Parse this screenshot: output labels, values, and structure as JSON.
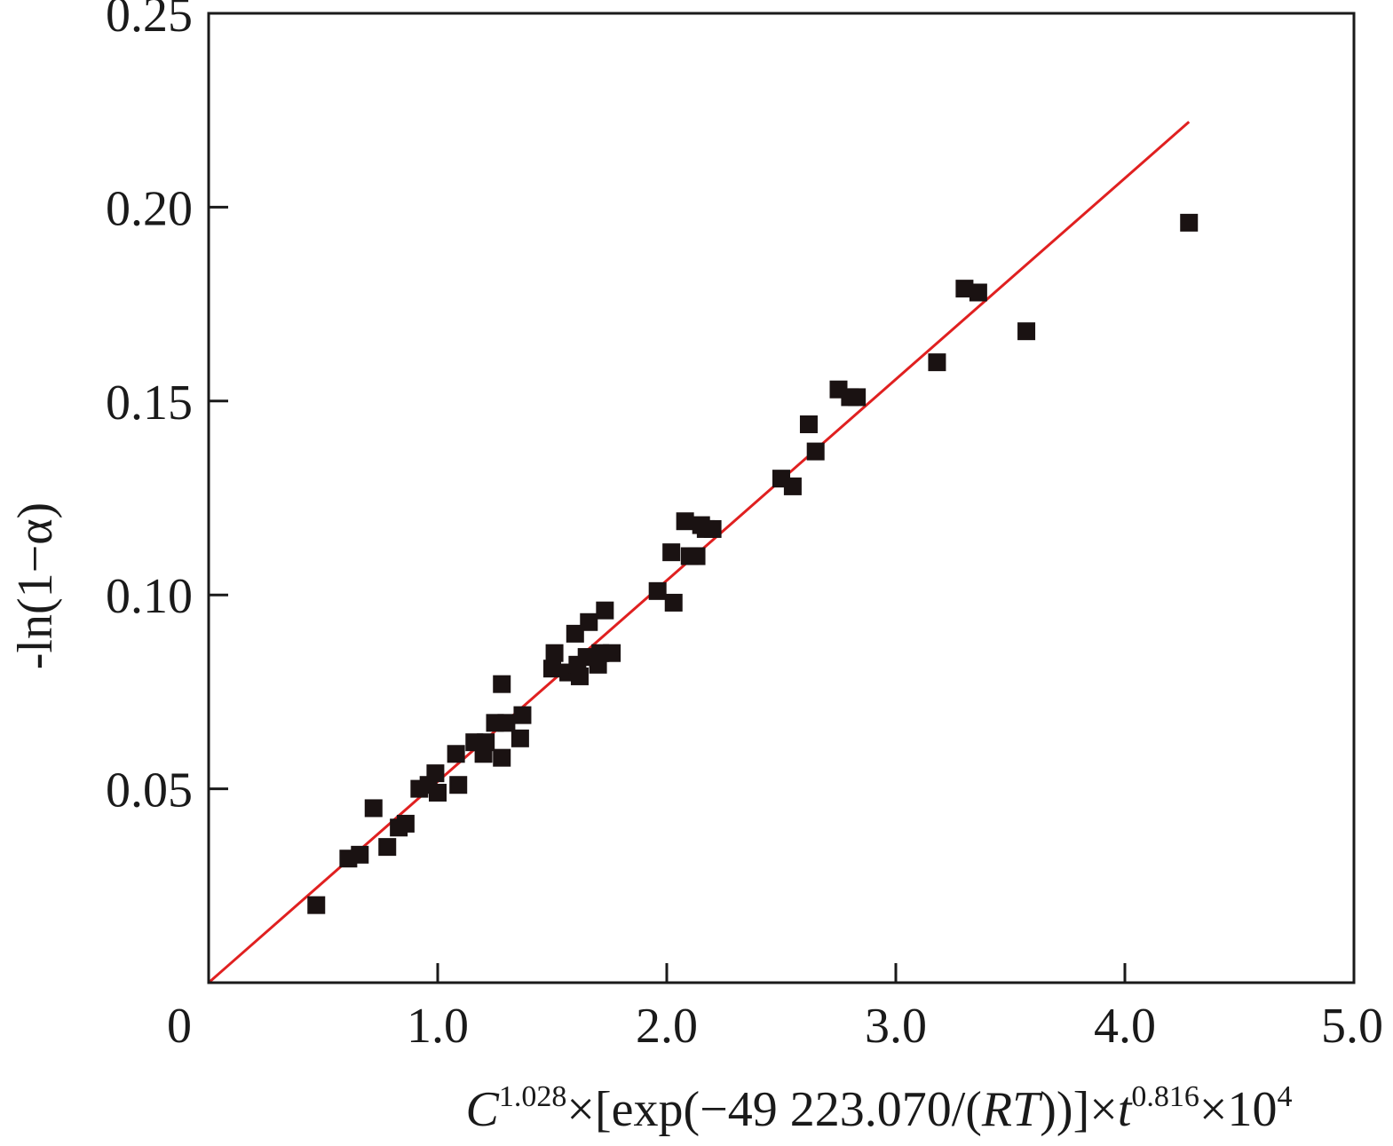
{
  "chart_data": {
    "type": "scatter",
    "title": "",
    "xlabel": {
      "parts": [
        {
          "text": "C",
          "italic": true
        },
        {
          "text": "1.028",
          "sup": true
        },
        {
          "text": "×[exp(−49 223.070/("
        },
        {
          "text": "RT",
          "italic": true
        },
        {
          "text": "))]×"
        },
        {
          "text": "t",
          "italic": true
        },
        {
          "text": "0.816",
          "sup": true
        },
        {
          "text": "×10"
        },
        {
          "text": "4",
          "sup": true
        }
      ]
    },
    "ylabel": "-ln(1−α)",
    "xlim": [
      0,
      5.0
    ],
    "ylim": [
      0,
      0.25
    ],
    "xticks": [
      {
        "value": 0,
        "label": "0"
      },
      {
        "value": 1.0,
        "label": "1.0"
      },
      {
        "value": 2.0,
        "label": "2.0"
      },
      {
        "value": 3.0,
        "label": "3.0"
      },
      {
        "value": 4.0,
        "label": "4.0"
      },
      {
        "value": 5.0,
        "label": "5.0"
      }
    ],
    "yticks": [
      {
        "value": 0.05,
        "label": "0.05"
      },
      {
        "value": 0.1,
        "label": "0.10"
      },
      {
        "value": 0.15,
        "label": "0.15"
      },
      {
        "value": 0.2,
        "label": "0.20"
      },
      {
        "value": 0.25,
        "label": "0.25"
      }
    ],
    "grid": false,
    "series": [
      {
        "marker": "square",
        "color": "#1a1212",
        "points": [
          [
            0.47,
            0.02
          ],
          [
            0.61,
            0.032
          ],
          [
            0.66,
            0.033
          ],
          [
            0.72,
            0.045
          ],
          [
            0.78,
            0.035
          ],
          [
            0.83,
            0.04
          ],
          [
            0.86,
            0.041
          ],
          [
            0.92,
            0.05
          ],
          [
            0.96,
            0.051
          ],
          [
            0.99,
            0.054
          ],
          [
            1.0,
            0.049
          ],
          [
            1.08,
            0.059
          ],
          [
            1.09,
            0.051
          ],
          [
            1.16,
            0.062
          ],
          [
            1.2,
            0.059
          ],
          [
            1.21,
            0.062
          ],
          [
            1.25,
            0.067
          ],
          [
            1.28,
            0.058
          ],
          [
            1.28,
            0.077
          ],
          [
            1.3,
            0.067
          ],
          [
            1.36,
            0.063
          ],
          [
            1.37,
            0.069
          ],
          [
            1.5,
            0.081
          ],
          [
            1.51,
            0.085
          ],
          [
            1.57,
            0.08
          ],
          [
            1.6,
            0.09
          ],
          [
            1.61,
            0.082
          ],
          [
            1.62,
            0.079
          ],
          [
            1.65,
            0.084
          ],
          [
            1.66,
            0.093
          ],
          [
            1.7,
            0.082
          ],
          [
            1.71,
            0.085
          ],
          [
            1.73,
            0.096
          ],
          [
            1.76,
            0.085
          ],
          [
            1.96,
            0.101
          ],
          [
            2.02,
            0.111
          ],
          [
            2.03,
            0.098
          ],
          [
            2.08,
            0.119
          ],
          [
            2.1,
            0.11
          ],
          [
            2.13,
            0.11
          ],
          [
            2.15,
            0.118
          ],
          [
            2.17,
            0.117
          ],
          [
            2.2,
            0.117
          ],
          [
            2.5,
            0.13
          ],
          [
            2.55,
            0.128
          ],
          [
            2.62,
            0.144
          ],
          [
            2.65,
            0.137
          ],
          [
            2.75,
            0.153
          ],
          [
            2.8,
            0.151
          ],
          [
            2.83,
            0.151
          ],
          [
            3.18,
            0.16
          ],
          [
            3.3,
            0.179
          ],
          [
            3.36,
            0.178
          ],
          [
            3.57,
            0.168
          ],
          [
            4.28,
            0.196
          ]
        ]
      }
    ],
    "fit_line": {
      "color": "#e02020",
      "x": [
        0,
        4.28
      ],
      "y": [
        0,
        0.222
      ]
    }
  }
}
